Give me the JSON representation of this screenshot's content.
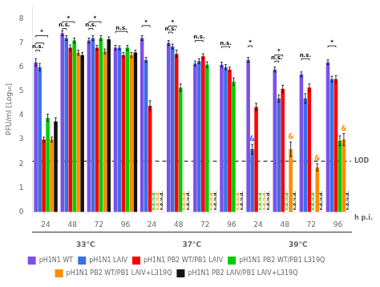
{
  "chart_data": {
    "type": "bar",
    "categories": [
      "24",
      "48",
      "72",
      "96",
      "24",
      "48",
      "72",
      "96",
      "24",
      "48",
      "72",
      "96"
    ],
    "category_groups": [
      "33°C",
      "37°C",
      "39°C"
    ],
    "xlabel": "h p.i.",
    "ylabel": "PFU/ml [Log₁₀]",
    "series": [
      {
        "name": "pH1N1 WT",
        "color": "#7B52E8",
        "values": [
          6.2,
          7.4,
          7.1,
          6.8,
          7.2,
          7.0,
          6.15,
          6.1,
          6.3,
          5.9,
          5.7,
          6.2
        ],
        "errors": [
          0.15,
          0.1,
          0.1,
          0.1,
          0.1,
          0.1,
          0.1,
          0.1,
          0.1,
          0.1,
          0.1,
          0.1
        ],
        "notes": [
          null,
          null,
          null,
          null,
          null,
          null,
          null,
          null,
          null,
          null,
          null,
          null
        ]
      },
      {
        "name": "pH1N1 LAIV",
        "color": "#3B6FE8",
        "values": [
          6.0,
          7.2,
          7.2,
          6.8,
          6.3,
          6.85,
          6.25,
          6.0,
          2.6,
          4.7,
          4.7,
          5.5
        ],
        "errors": [
          0.15,
          0.1,
          0.1,
          0.08,
          0.1,
          0.1,
          0.1,
          0.1,
          0.2,
          0.15,
          0.2,
          0.12
        ],
        "notes": [
          null,
          null,
          null,
          null,
          null,
          null,
          null,
          null,
          "&",
          null,
          null,
          null
        ]
      },
      {
        "name": "pH1N1 PB2 WT/PB1 LAIV",
        "color": "#FF0000",
        "values": [
          3.0,
          6.8,
          6.8,
          6.5,
          4.4,
          6.55,
          6.45,
          5.9,
          4.35,
          5.1,
          5.15,
          5.5
        ],
        "errors": [
          0.1,
          0.12,
          0.1,
          0.1,
          0.2,
          0.15,
          0.1,
          0.1,
          0.15,
          0.15,
          0.15,
          0.15
        ],
        "notes": [
          null,
          null,
          null,
          null,
          null,
          null,
          null,
          null,
          null,
          null,
          null,
          null
        ]
      },
      {
        "name": "pH1N1 PB2 WT/PB1 L319Q",
        "color": "#00CC00",
        "values": [
          3.9,
          7.1,
          7.2,
          6.8,
          0,
          5.15,
          6.1,
          5.4,
          0,
          0,
          0,
          2.95
        ],
        "errors": [
          0.15,
          0.1,
          0.1,
          0.1,
          0,
          0.15,
          0.12,
          0.15,
          0,
          0,
          0,
          0.2
        ],
        "notes": [
          null,
          null,
          null,
          null,
          "n.d./n.d.",
          null,
          null,
          null,
          "n.d./n.d.",
          "n.d./n.d.",
          "n.d./n.d.",
          null
        ]
      },
      {
        "name": "pH1N1 PB2 WT/PB1 LAIV+L319Q",
        "color": "#FF8C00",
        "values": [
          3.0,
          6.6,
          6.65,
          6.5,
          0,
          0,
          0,
          0,
          0,
          2.6,
          1.85,
          3.0
        ],
        "errors": [
          0.1,
          0.1,
          0.1,
          0.1,
          0,
          0,
          0,
          0,
          0,
          0.3,
          0.15,
          0.25
        ],
        "notes": [
          null,
          null,
          null,
          null,
          "n.d./n.d.",
          "n.d./n.d.",
          "n.d./n.d.",
          "n.d./n.d.",
          "n.d./n.d.",
          "&",
          "&",
          "&"
        ]
      },
      {
        "name": "pH1N1 PB2 LAIV/PB1 LAIV+L319Q",
        "color": "#111111",
        "values": [
          3.75,
          6.5,
          7.15,
          6.6,
          0,
          0,
          0,
          0,
          0,
          0,
          0,
          0
        ],
        "errors": [
          0.15,
          0.1,
          0.1,
          0.1,
          0,
          0,
          0,
          0,
          0,
          0,
          0,
          0
        ],
        "notes": [
          null,
          null,
          null,
          null,
          "n.d./n.d.",
          "n.d./n.d.",
          "n.d./n.d.",
          "n.d./n.d.",
          "n.d./n.d.",
          "n.d./n.d.",
          "n.d./n.d.",
          "n.d./n.d."
        ]
      }
    ],
    "hlines": [
      {
        "y": 2.1,
        "label": "LOD"
      }
    ],
    "brackets": [
      {
        "group": "33°C",
        "category": "24",
        "from": "pH1N1 WT",
        "to": "pH1N1 LAIV",
        "y": 6.7,
        "label": "n.s."
      },
      {
        "group": "33°C",
        "category": "24",
        "from": "pH1N1 WT",
        "to": "pH1N1 PB2 WT/PB1 LAIV",
        "y": 7.0
      },
      {
        "group": "33°C",
        "category": "24",
        "from": "pH1N1 WT",
        "to": "pH1N1 PB2 WT/PB1 L319Q",
        "y": 7.3,
        "label": "*"
      },
      {
        "group": "33°C",
        "category": "48",
        "from": "pH1N1 WT",
        "to": "pH1N1 LAIV",
        "y": 7.6,
        "label": "n.s."
      },
      {
        "group": "33°C",
        "category": "48",
        "from": "pH1N1 WT",
        "to": "pH1N1 PB2 WT/PB1 L319Q",
        "y": 7.88,
        "label": "*"
      },
      {
        "group": "33°C",
        "category": "72",
        "from": "pH1N1 WT",
        "to": "pH1N1 LAIV",
        "y": 7.6,
        "label": "n.s."
      },
      {
        "group": "33°C",
        "category": "72",
        "from": "pH1N1 WT",
        "to": "pH1N1 PB2 WT/PB1 L319Q",
        "y": 7.88,
        "label": "*"
      },
      {
        "group": "33°C",
        "category": "96",
        "from": "pH1N1 WT",
        "to": "pH1N1 PB2 WT/PB1 L319Q",
        "y": 7.48,
        "label": "n.s."
      },
      {
        "group": "37°C",
        "category": "24",
        "from": "pH1N1 WT",
        "to": "pH1N1 PB2 WT/PB1 LAIV",
        "y": 7.72,
        "label": "*"
      },
      {
        "group": "37°C",
        "category": "48",
        "from": "pH1N1 WT",
        "to": "pH1N1 LAIV",
        "y": 7.45,
        "label": "n.s."
      },
      {
        "group": "37°C",
        "category": "48",
        "from": "pH1N1 WT",
        "to": "pH1N1 PB2 WT/PB1 LAIV",
        "y": 7.7,
        "label": "*"
      },
      {
        "group": "37°C",
        "category": "72",
        "from": "pH1N1 WT",
        "to": "pH1N1 PB2 WT/PB1 LAIV",
        "y": 7.1,
        "label": "n.s."
      },
      {
        "group": "37°C",
        "category": "96",
        "from": "pH1N1 WT",
        "to": "pH1N1 PB2 WT/PB1 LAIV",
        "y": 6.85,
        "label": "n.s."
      },
      {
        "group": "39°C",
        "category": "24",
        "from": "pH1N1 WT",
        "to": "pH1N1 LAIV",
        "y": 6.88,
        "label": "*"
      },
      {
        "group": "39°C",
        "category": "48",
        "from": "pH1N1 WT",
        "to": "pH1N1 LAIV",
        "y": 6.25,
        "label": "n.s."
      },
      {
        "group": "39°C",
        "category": "48",
        "from": "pH1N1 WT",
        "to": "pH1N1 PB2 WT/PB1 LAIV",
        "y": 6.5,
        "label": "*"
      },
      {
        "group": "39°C",
        "category": "72",
        "from": "pH1N1 WT",
        "to": "pH1N1 PB2 WT/PB1 LAIV",
        "y": 6.35,
        "label": "n.s."
      },
      {
        "group": "39°C",
        "category": "96",
        "from": "pH1N1 WT",
        "to": "pH1N1 PB2 WT/PB1 LAIV",
        "y": 6.88,
        "label": "*"
      }
    ],
    "ylim": [
      0,
      8.5
    ],
    "yticks": [
      0,
      1,
      2,
      3,
      4,
      5,
      6,
      7,
      8
    ],
    "grid": false,
    "legend": "bottom"
  }
}
